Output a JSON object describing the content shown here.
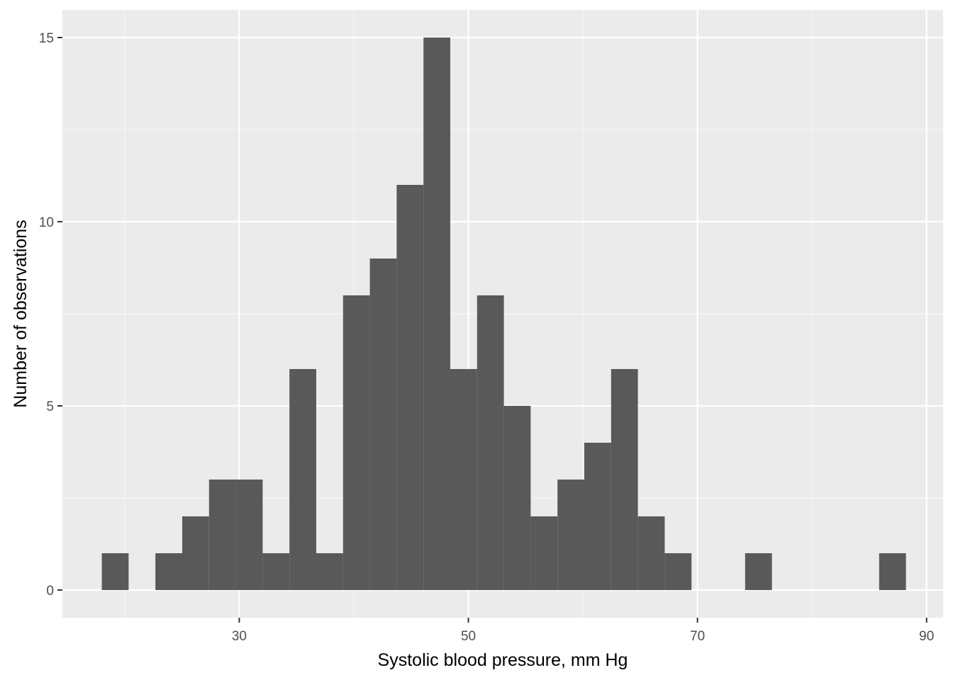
{
  "chart_data": {
    "type": "bar",
    "subtype": "histogram",
    "title": "",
    "xlabel": "Systolic blood pressure, mm Hg",
    "ylabel": "Number of observations",
    "xlim": [
      14.56,
      91.44
    ],
    "ylim": [
      -0.75,
      15.75
    ],
    "xticks": [
      30,
      50,
      70,
      90
    ],
    "xtick_labels": [
      "30",
      "50",
      "70",
      "90"
    ],
    "yticks": [
      0,
      5,
      10,
      15
    ],
    "ytick_labels": [
      "0",
      "5",
      "10",
      "15"
    ],
    "grid": true,
    "bin_width": 2.34,
    "bins": [
      {
        "x0": 18.0,
        "x1": 20.34,
        "count": 1
      },
      {
        "x0": 20.34,
        "x1": 22.68,
        "count": 0
      },
      {
        "x0": 22.68,
        "x1": 25.02,
        "count": 1
      },
      {
        "x0": 25.02,
        "x1": 27.36,
        "count": 2
      },
      {
        "x0": 27.36,
        "x1": 29.7,
        "count": 3
      },
      {
        "x0": 29.7,
        "x1": 32.04,
        "count": 3
      },
      {
        "x0": 32.04,
        "x1": 34.38,
        "count": 1
      },
      {
        "x0": 34.38,
        "x1": 36.72,
        "count": 6
      },
      {
        "x0": 36.72,
        "x1": 39.06,
        "count": 1
      },
      {
        "x0": 39.06,
        "x1": 41.4,
        "count": 8
      },
      {
        "x0": 41.4,
        "x1": 43.74,
        "count": 9
      },
      {
        "x0": 43.74,
        "x1": 46.08,
        "count": 11
      },
      {
        "x0": 46.08,
        "x1": 48.42,
        "count": 15
      },
      {
        "x0": 48.42,
        "x1": 50.76,
        "count": 6
      },
      {
        "x0": 50.76,
        "x1": 53.1,
        "count": 8
      },
      {
        "x0": 53.1,
        "x1": 55.44,
        "count": 5
      },
      {
        "x0": 55.44,
        "x1": 57.78,
        "count": 2
      },
      {
        "x0": 57.78,
        "x1": 60.12,
        "count": 3
      },
      {
        "x0": 60.12,
        "x1": 62.46,
        "count": 4
      },
      {
        "x0": 62.46,
        "x1": 64.8,
        "count": 6
      },
      {
        "x0": 64.8,
        "x1": 67.14,
        "count": 2
      },
      {
        "x0": 67.14,
        "x1": 69.48,
        "count": 1
      },
      {
        "x0": 69.48,
        "x1": 71.82,
        "count": 0
      },
      {
        "x0": 71.82,
        "x1": 74.16,
        "count": 0
      },
      {
        "x0": 74.16,
        "x1": 76.5,
        "count": 1
      },
      {
        "x0": 76.5,
        "x1": 78.84,
        "count": 0
      },
      {
        "x0": 78.84,
        "x1": 81.18,
        "count": 0
      },
      {
        "x0": 81.18,
        "x1": 83.52,
        "count": 0
      },
      {
        "x0": 83.52,
        "x1": 85.86,
        "count": 0
      },
      {
        "x0": 85.86,
        "x1": 88.2,
        "count": 1
      }
    ],
    "colors": {
      "bar_fill": "#595959",
      "panel_background": "#ebebeb",
      "grid_major": "#ffffff",
      "grid_minor": "#f5f5f5",
      "tick_label": "#4d4d4d",
      "axis_title": "#000000"
    }
  }
}
